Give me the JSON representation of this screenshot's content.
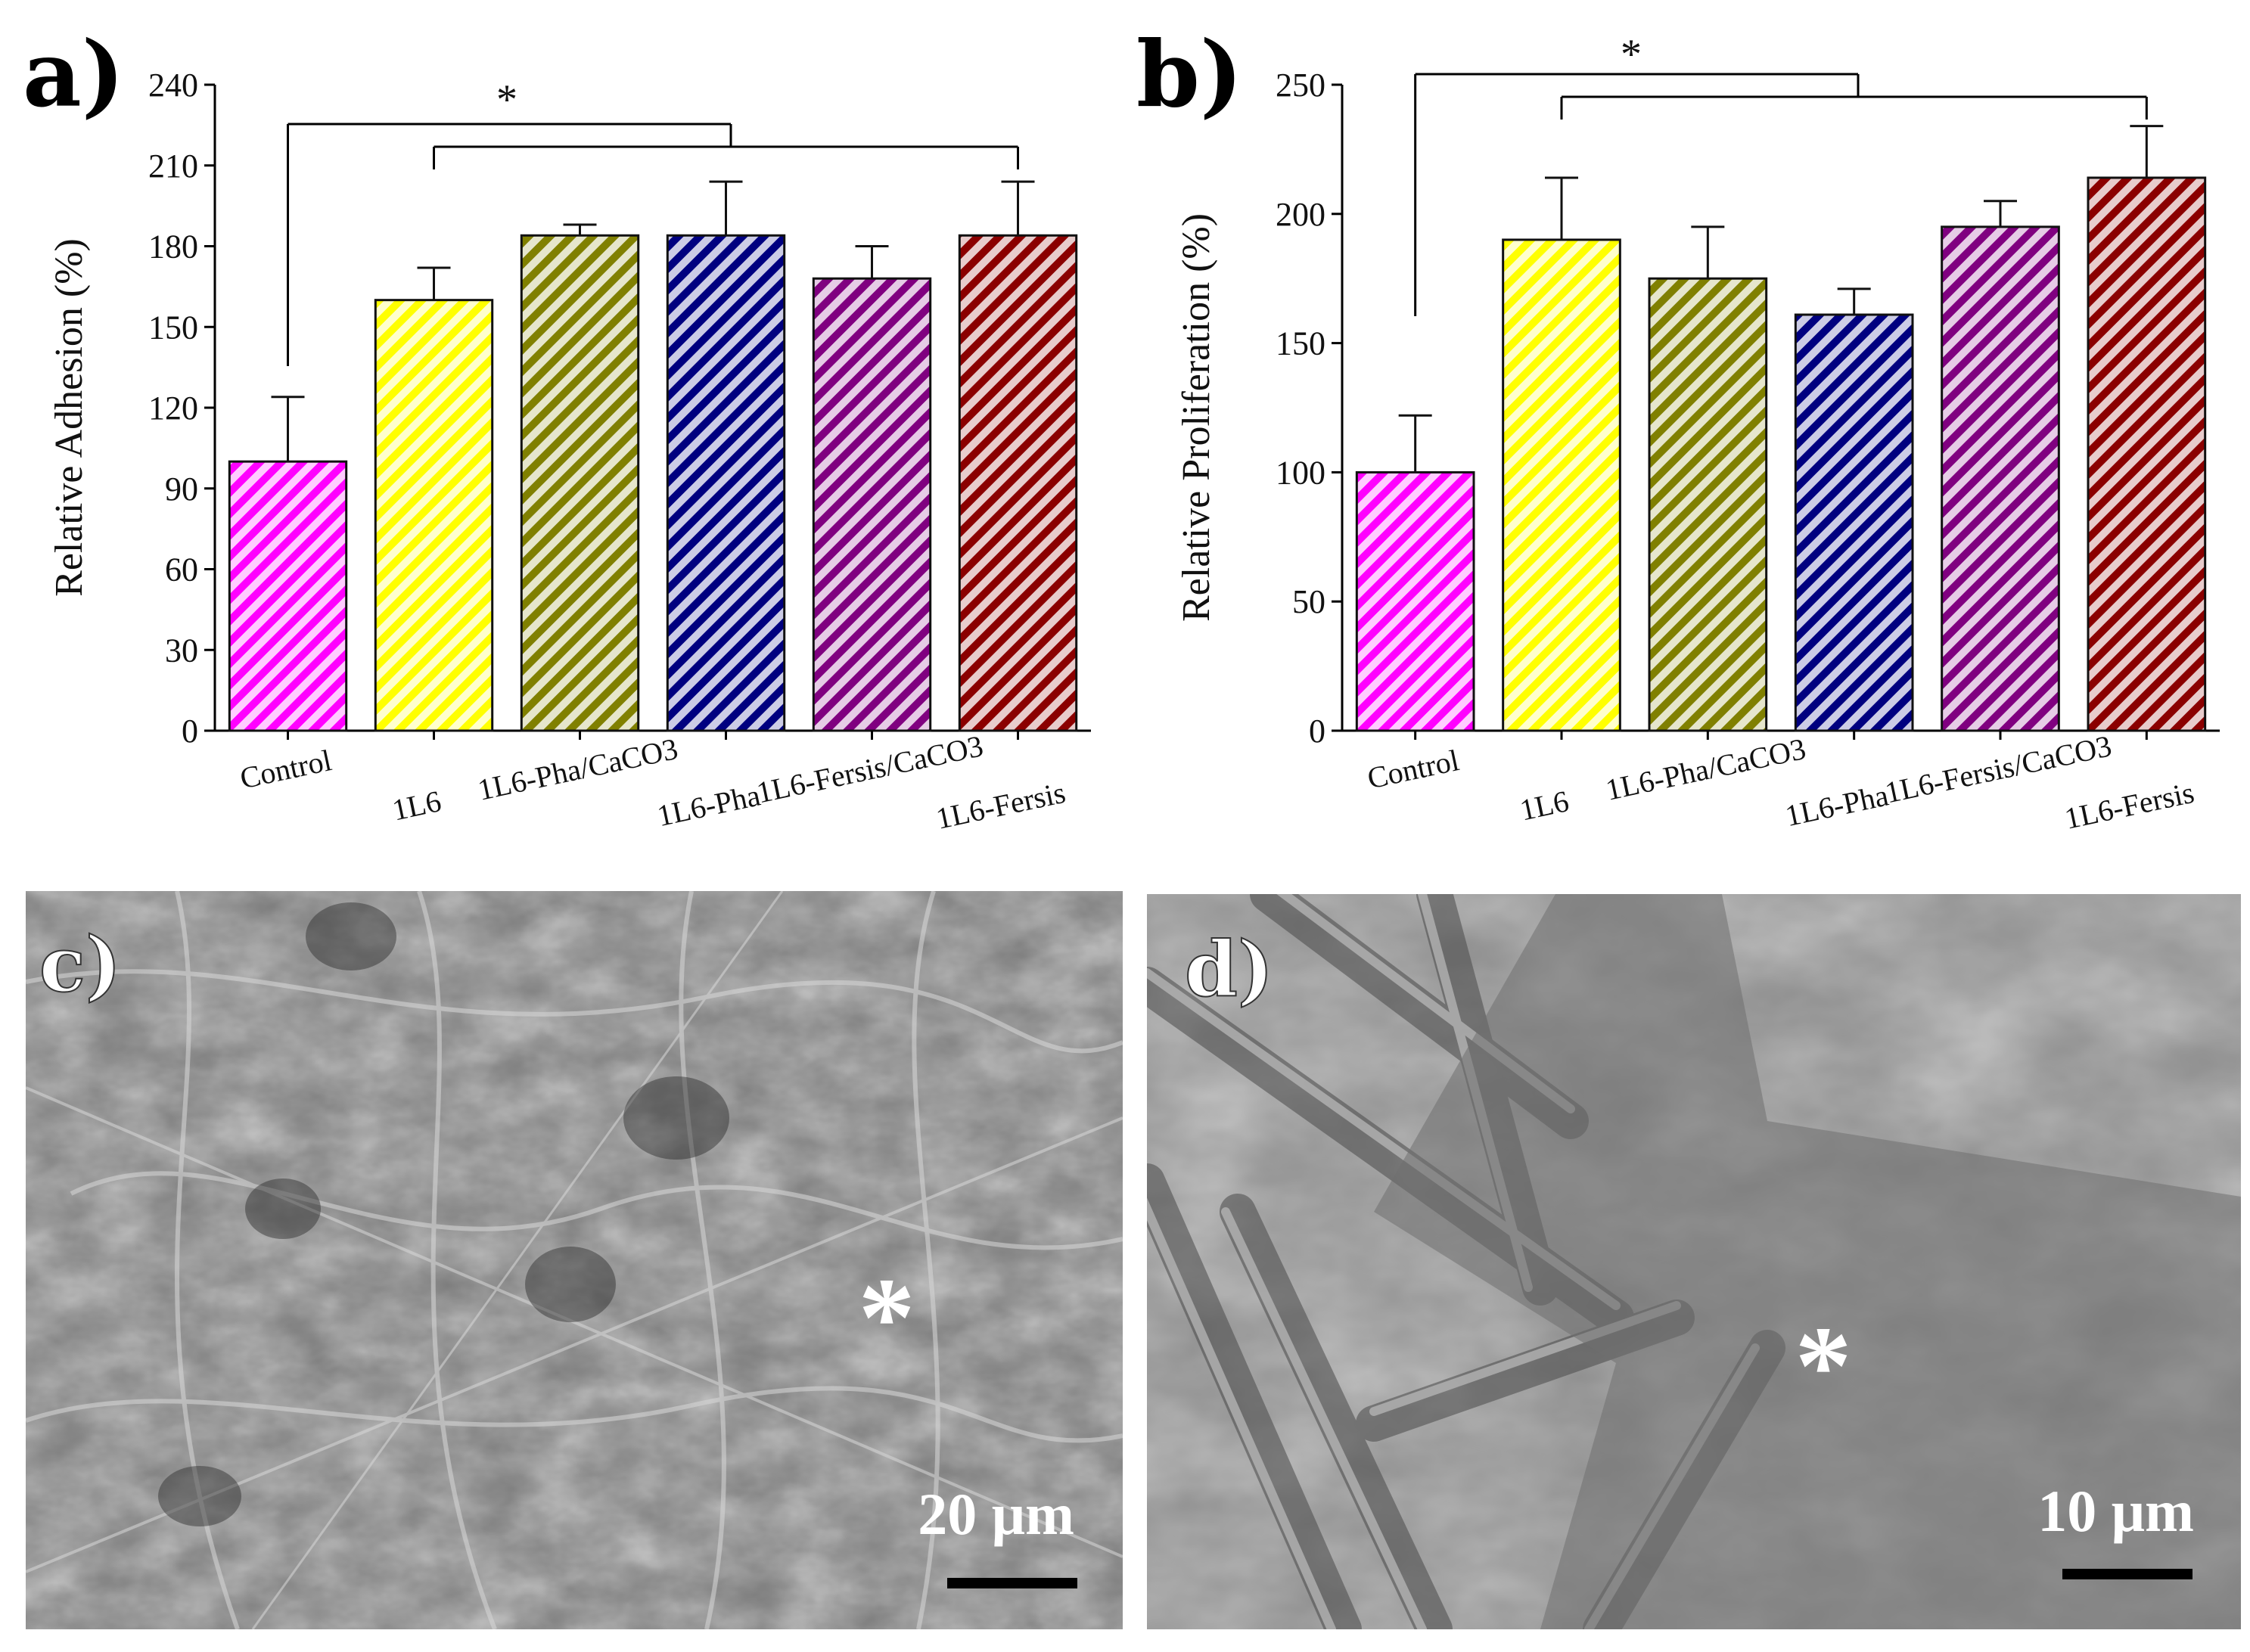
{
  "colors": {
    "control": "#ff00ff",
    "1L6": "#ffff00",
    "1L6-Pha/CaCO3": "#808000",
    "1L6-Pha": "#000080",
    "1L6-Fersis/CaCO3": "#800080",
    "1L6-Fersis": "#8b0000"
  },
  "chart_data": [
    {
      "type": "bar",
      "panel": "a)",
      "title": "",
      "ylabel": "Relative Adhesion (%)",
      "xlabel": "",
      "categories": [
        "Control",
        "1L6",
        "1L6-Pha/CaCO3",
        "1L6-Pha",
        "1L6-Fersis/CaCO3",
        "1L6-Fersis"
      ],
      "values": [
        100,
        160,
        184,
        184,
        168,
        184
      ],
      "errors": [
        24,
        12,
        4,
        20,
        12,
        20
      ],
      "ylim": [
        0,
        240
      ],
      "yticks": [
        "0",
        "30",
        "60",
        "90",
        "120",
        "150",
        "180",
        "210",
        "240"
      ],
      "significance": "*",
      "pattern": "diagonal-hatch"
    },
    {
      "type": "bar",
      "panel": "b)",
      "title": "",
      "ylabel": "Relative Proliferation (%)",
      "xlabel": "",
      "categories": [
        "Control",
        "1L6",
        "1L6-Pha/CaCO3",
        "1L6-Pha",
        "1L6-Fersis/CaCO3",
        "1L6-Fersis"
      ],
      "values": [
        100,
        190,
        175,
        161,
        195,
        214
      ],
      "errors": [
        22,
        24,
        20,
        10,
        10,
        20
      ],
      "ylim": [
        0,
        250
      ],
      "yticks": [
        "0",
        "50",
        "100",
        "150",
        "200",
        "250"
      ],
      "significance": "*",
      "pattern": "diagonal-hatch"
    }
  ],
  "sem": [
    {
      "panel": "c)",
      "marker": "*",
      "scale_bar": "20 μm"
    },
    {
      "panel": "d)",
      "marker": "*",
      "scale_bar": "10 μm"
    }
  ]
}
